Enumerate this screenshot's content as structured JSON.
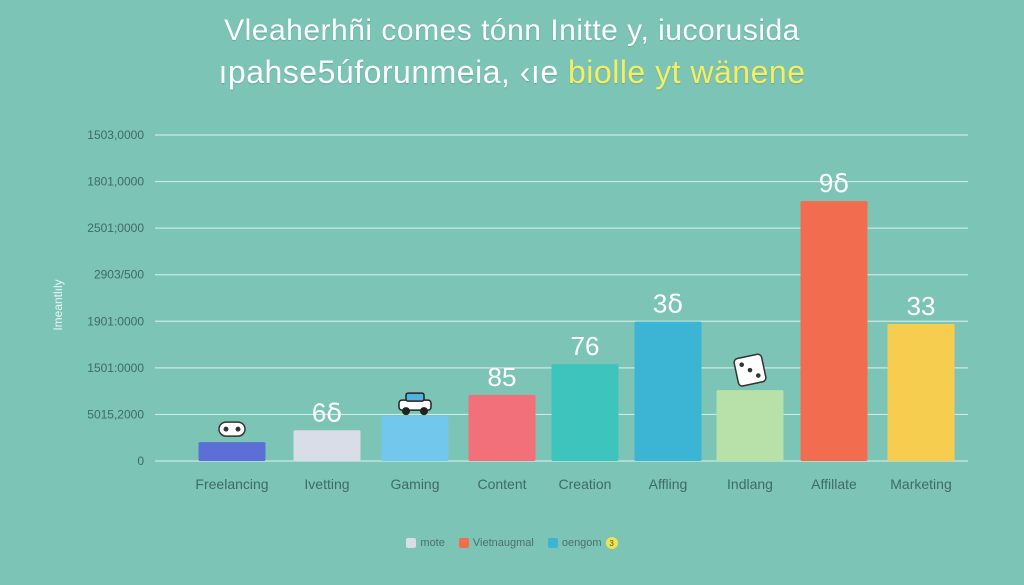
{
  "title": {
    "line1": "Vleaherhñi comes tónn Initte y, iucorusida",
    "line2_main": "ıpahse5úforunmeia, ‹ıe",
    "line2_accent": "biolle yt wänene"
  },
  "colors": {
    "background": "#7cc4b6",
    "gridline": "#d9f1ec",
    "axis_text": "#3f6b63",
    "accent_title": "#f4ef5e"
  },
  "chart_data": {
    "type": "bar",
    "ylabel": "Imeantlıly",
    "ytick_labels": [
      "0",
      "5015,2000",
      "1501:0000",
      "1901:0000",
      "2903/500",
      "2501;0000",
      "1801,0000",
      "1503,0000"
    ],
    "categories": [
      "Freelancing",
      "Ivetting",
      "Gaming",
      "Content",
      "Creation",
      "Affling",
      "Indlang",
      "Affillate",
      "Marketing"
    ],
    "values": [
      4,
      6.5,
      9.5,
      14,
      20.5,
      29.5,
      15,
      55,
      29
    ],
    "data_labels": [
      "",
      "6ẟ",
      "",
      "85",
      "76",
      "3ẟ",
      "",
      "9ẟ",
      "33"
    ],
    "bar_colors": [
      "#5b6fd6",
      "#d8dde8",
      "#72c7ec",
      "#f2707a",
      "#3dc4bd",
      "#3bb5d3",
      "#b7e1a8",
      "#f26c4f",
      "#f7cd4f"
    ],
    "icons": [
      "gamepad-icon",
      "",
      "car-icon",
      "",
      "",
      "",
      "dice-icon",
      "",
      ""
    ],
    "ylim": [
      0,
      69
    ],
    "grid": true
  },
  "legend": {
    "items": [
      {
        "label": "mote",
        "color": "#d8dde8"
      },
      {
        "label": "Vietnaugmal",
        "color": "#f26c4f"
      },
      {
        "label": "oengom",
        "color": "#3bb5d3"
      }
    ],
    "badge": "3"
  }
}
